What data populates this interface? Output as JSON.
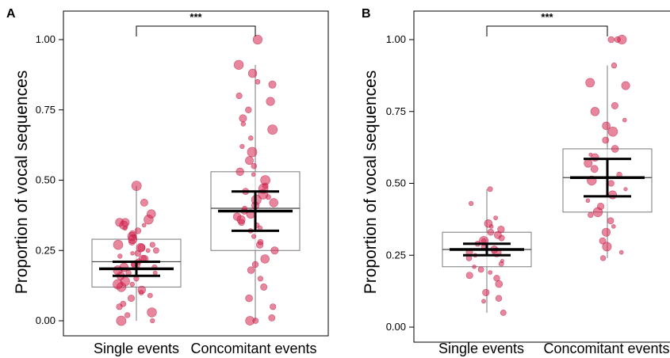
{
  "chart_data": [
    {
      "type": "box",
      "panel_label": "A",
      "ylabel": "Proportion of vocal sequences",
      "ylim": [
        0,
        1
      ],
      "yticks": [
        "0.00",
        "0.25",
        "0.50",
        "0.75",
        "1.00"
      ],
      "categories": [
        "Single events",
        "Concomitant events"
      ],
      "significance": "***",
      "colors": {
        "points": "#d6224f",
        "box_edge": "#7a7a7a",
        "error_bar": "#000000"
      },
      "boxes": [
        {
          "category": "Single events",
          "q1": 0.12,
          "median": 0.21,
          "q3": 0.29,
          "whisker_low": 0.0,
          "whisker_high": 0.48,
          "mean": 0.185,
          "ci_low": 0.16,
          "ci_high": 0.21
        },
        {
          "category": "Concomitant events",
          "q1": 0.25,
          "median": 0.4,
          "q3": 0.53,
          "whisker_low": 0.0,
          "whisker_high": 0.91,
          "mean": 0.39,
          "ci_low": 0.32,
          "ci_high": 0.46
        }
      ],
      "points": [
        [
          0.03,
          0.05,
          0.0,
          0.08,
          0.1,
          0.12,
          0.13,
          0.15,
          0.16,
          0.17,
          0.18,
          0.19,
          0.2,
          0.21,
          0.22,
          0.23,
          0.24,
          0.25,
          0.26,
          0.27,
          0.28,
          0.3,
          0.31,
          0.33,
          0.34,
          0.35,
          0.36,
          0.38,
          0.42,
          0.48,
          0.02,
          0.06,
          0.11,
          0.14,
          0.19,
          0.24,
          0.27,
          0.29,
          0.32,
          0.35,
          0.09,
          0.17,
          0.22,
          0.26,
          0.34,
          0.0,
          0.13,
          0.2,
          0.25,
          0.3
        ],
        [
          0.0,
          0.0,
          0.01,
          0.05,
          0.08,
          0.12,
          0.15,
          0.18,
          0.2,
          0.22,
          0.25,
          0.27,
          0.28,
          0.3,
          0.32,
          0.33,
          0.35,
          0.36,
          0.37,
          0.38,
          0.39,
          0.4,
          0.41,
          0.42,
          0.43,
          0.44,
          0.45,
          0.46,
          0.47,
          0.48,
          0.5,
          0.52,
          0.55,
          0.57,
          0.6,
          0.62,
          0.65,
          0.68,
          0.7,
          0.72,
          0.75,
          0.78,
          0.8,
          0.84,
          0.85,
          0.88,
          0.91,
          1.0,
          0.34,
          0.53
        ]
      ]
    },
    {
      "type": "box",
      "panel_label": "B",
      "ylabel": "Proportion of vocal sequences",
      "ylim": [
        0,
        1
      ],
      "yticks": [
        "0.00",
        "0.25",
        "0.50",
        "0.75",
        "1.00"
      ],
      "categories": [
        "Single events",
        "Concomitant events"
      ],
      "significance": "***",
      "colors": {
        "points": "#d6224f",
        "box_edge": "#7a7a7a",
        "error_bar": "#000000"
      },
      "boxes": [
        {
          "category": "Single events",
          "q1": 0.21,
          "median": 0.27,
          "q3": 0.33,
          "whisker_low": 0.05,
          "whisker_high": 0.48,
          "mean": 0.27,
          "ci_low": 0.25,
          "ci_high": 0.29
        },
        {
          "category": "Concomitant events",
          "q1": 0.4,
          "median": 0.52,
          "q3": 0.62,
          "whisker_low": 0.24,
          "whisker_high": 0.91,
          "mean": 0.52,
          "ci_low": 0.455,
          "ci_high": 0.585
        }
      ],
      "points": [
        [
          0.05,
          0.09,
          0.12,
          0.15,
          0.17,
          0.18,
          0.2,
          0.21,
          0.22,
          0.23,
          0.24,
          0.25,
          0.26,
          0.27,
          0.28,
          0.29,
          0.3,
          0.31,
          0.32,
          0.33,
          0.34,
          0.35,
          0.36,
          0.38,
          0.43,
          0.48,
          0.1,
          0.19,
          0.26,
          0.3
        ],
        [
          0.24,
          0.26,
          0.28,
          0.3,
          0.33,
          0.35,
          0.37,
          0.39,
          0.4,
          0.42,
          0.44,
          0.46,
          0.48,
          0.5,
          0.51,
          0.53,
          0.55,
          0.57,
          0.59,
          0.6,
          0.62,
          0.65,
          0.68,
          0.7,
          0.72,
          0.75,
          0.77,
          0.84,
          0.85,
          0.91,
          1.0,
          1.0,
          1.0
        ]
      ]
    }
  ]
}
